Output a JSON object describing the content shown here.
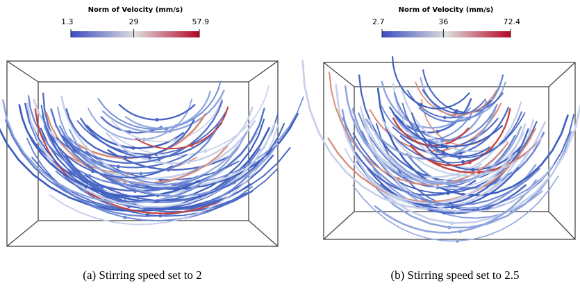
{
  "panels": [
    {
      "colorbar": {
        "title": "Norm of Velocity (mm/s)",
        "ticks": [
          1.3,
          29,
          57.9
        ]
      },
      "caption": "(a) Stirring speed set to 2"
    },
    {
      "colorbar": {
        "title": "Norm of Velocity (mm/s)",
        "ticks": [
          2.7,
          36,
          72.4
        ]
      },
      "caption": "(b) Stirring speed set to 2.5"
    }
  ]
}
